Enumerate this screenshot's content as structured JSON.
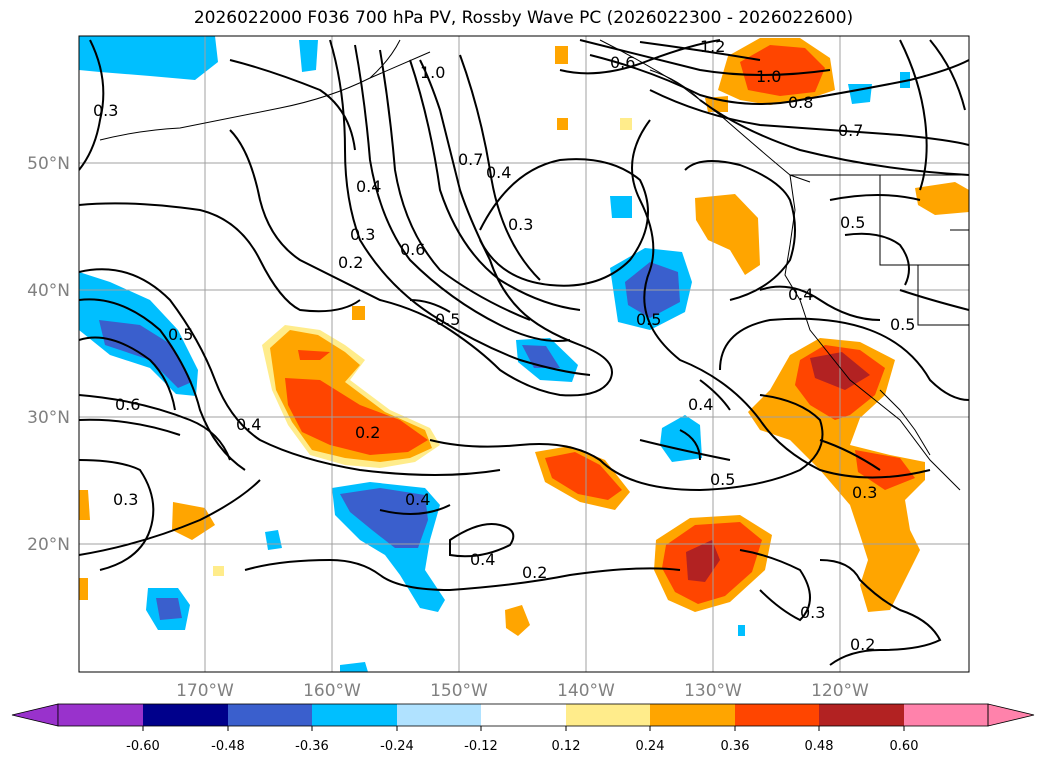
{
  "title": "2026022000 F036 700 hPa PV, Rossby Wave PC (2026022300 - 2026022600)",
  "lat_labels": [
    "50°N",
    "40°N",
    "30°N",
    "20°N"
  ],
  "lon_labels": [
    "170°W",
    "160°W",
    "150°W",
    "140°W",
    "130°W",
    "120°W"
  ],
  "contour_labels": [
    "1.2",
    "1.0",
    "0.8",
    "0.7",
    "0.6",
    "0.5",
    "0.4",
    "0.3",
    "0.2"
  ],
  "colorbar": {
    "ticks": [
      "-0.60",
      "-0.48",
      "-0.36",
      "-0.24",
      "-0.12",
      "0.12",
      "0.24",
      "0.36",
      "0.48",
      "0.60"
    ],
    "colors": [
      "#9932cc",
      "#00008b",
      "#3a5fcd",
      "#00bfff",
      "#b0e2ff",
      "#ffffff",
      "#ffec8b",
      "#ffa500",
      "#ff4500",
      "#b22222",
      "#ff82ab"
    ]
  },
  "colors": {
    "land": "#000000",
    "grid": "#a0a0a0",
    "contour": "#000000"
  }
}
